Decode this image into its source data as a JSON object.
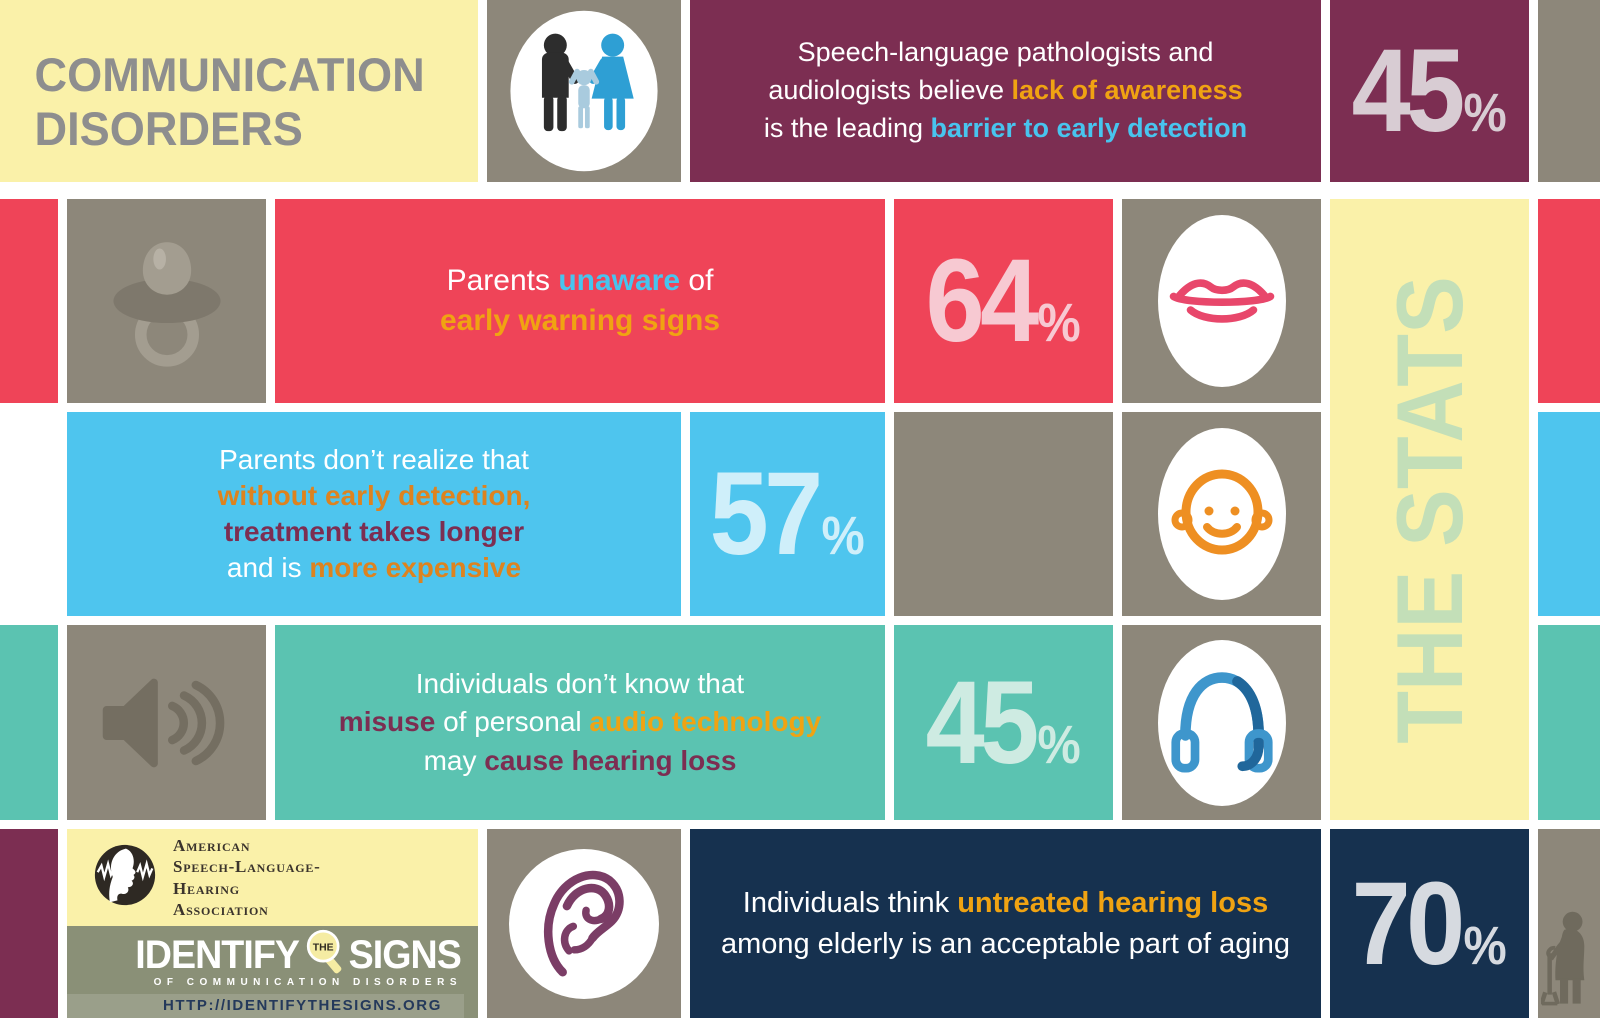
{
  "title": {
    "text": "COMMUNICATION\nDISORDERS"
  },
  "stats_column": {
    "label": "THE STATS"
  },
  "colors": {
    "yellow": "#FAF1A9",
    "taupe": "#8D877A",
    "maroon": "#7C2E52",
    "red": "#EF4458",
    "blue": "#4EC5EE",
    "teal": "#5BC3B1",
    "navy": "#16314F",
    "sage": "#8A9077",
    "orange": "#F0A312",
    "orange_dark": "#DD831F",
    "blue_accent": "#48C4EE",
    "stats_green": "#C3DFB8",
    "title_gray": "#8E8E8E",
    "url_navy": "#24395B"
  },
  "stats": {
    "stat1": {
      "segments": [
        {
          "t": "Speech-language pathologists and\naudiologists believe "
        },
        {
          "t": "lack of awareness",
          "c": "orange"
        },
        {
          "t": "\nis the leading "
        },
        {
          "t": "barrier to early detection",
          "c": "blue"
        }
      ],
      "percent": "45",
      "percent_symbol": "%"
    },
    "stat2": {
      "segments": [
        {
          "t": "Parents "
        },
        {
          "t": "unaware",
          "c": "blue"
        },
        {
          "t": " of\n"
        },
        {
          "t": "early warning signs",
          "c": "orange"
        }
      ],
      "percent": "64",
      "percent_symbol": "%"
    },
    "stat3": {
      "segments": [
        {
          "t": "Parents don’t realize that\n"
        },
        {
          "t": "without early detection,",
          "c": "orange2"
        },
        {
          "t": "\n"
        },
        {
          "t": "treatment takes longer",
          "c": "maroon"
        },
        {
          "t": "\nand is "
        },
        {
          "t": "more expensive",
          "c": "orange2"
        }
      ],
      "percent": "57",
      "percent_symbol": "%"
    },
    "stat4": {
      "segments": [
        {
          "t": "Individuals don’t know that\n"
        },
        {
          "t": "misuse",
          "c": "maroon"
        },
        {
          "t": " of personal "
        },
        {
          "t": "audio technology",
          "c": "orange"
        },
        {
          "t": "\nmay "
        },
        {
          "t": "cause hearing loss",
          "c": "maroon"
        }
      ],
      "percent": "45",
      "percent_symbol": "%"
    },
    "stat5": {
      "segments": [
        {
          "t": "Individuals think "
        },
        {
          "t": "untreated hearing loss",
          "c": "orange"
        },
        {
          "t": "\namong elderly is an acceptable part of aging"
        }
      ],
      "percent": "70",
      "percent_symbol": "%"
    }
  },
  "icons": {
    "row1": "family-icon",
    "row2_left": "pacifier-icon",
    "row2_right": "lips-icon",
    "row3_right": "baby-face-icon",
    "row4_left": "speaker-icon",
    "row4_right": "headphones-icon",
    "row5_left": "ear-icon",
    "row5_right": "elderly-person-icon",
    "footer": "asha-logo",
    "magnifier": "magnifier-icon"
  },
  "footer": {
    "asha_name": "American\nSpeech-Language-\nHearing\nAssociation",
    "identify": "IDENTIFY",
    "the": "THE",
    "signs": "SIGNS",
    "tagline": "OF COMMUNICATION DISORDERS",
    "url": "HTTP://IDENTIFYTHESIGNS.ORG"
  }
}
